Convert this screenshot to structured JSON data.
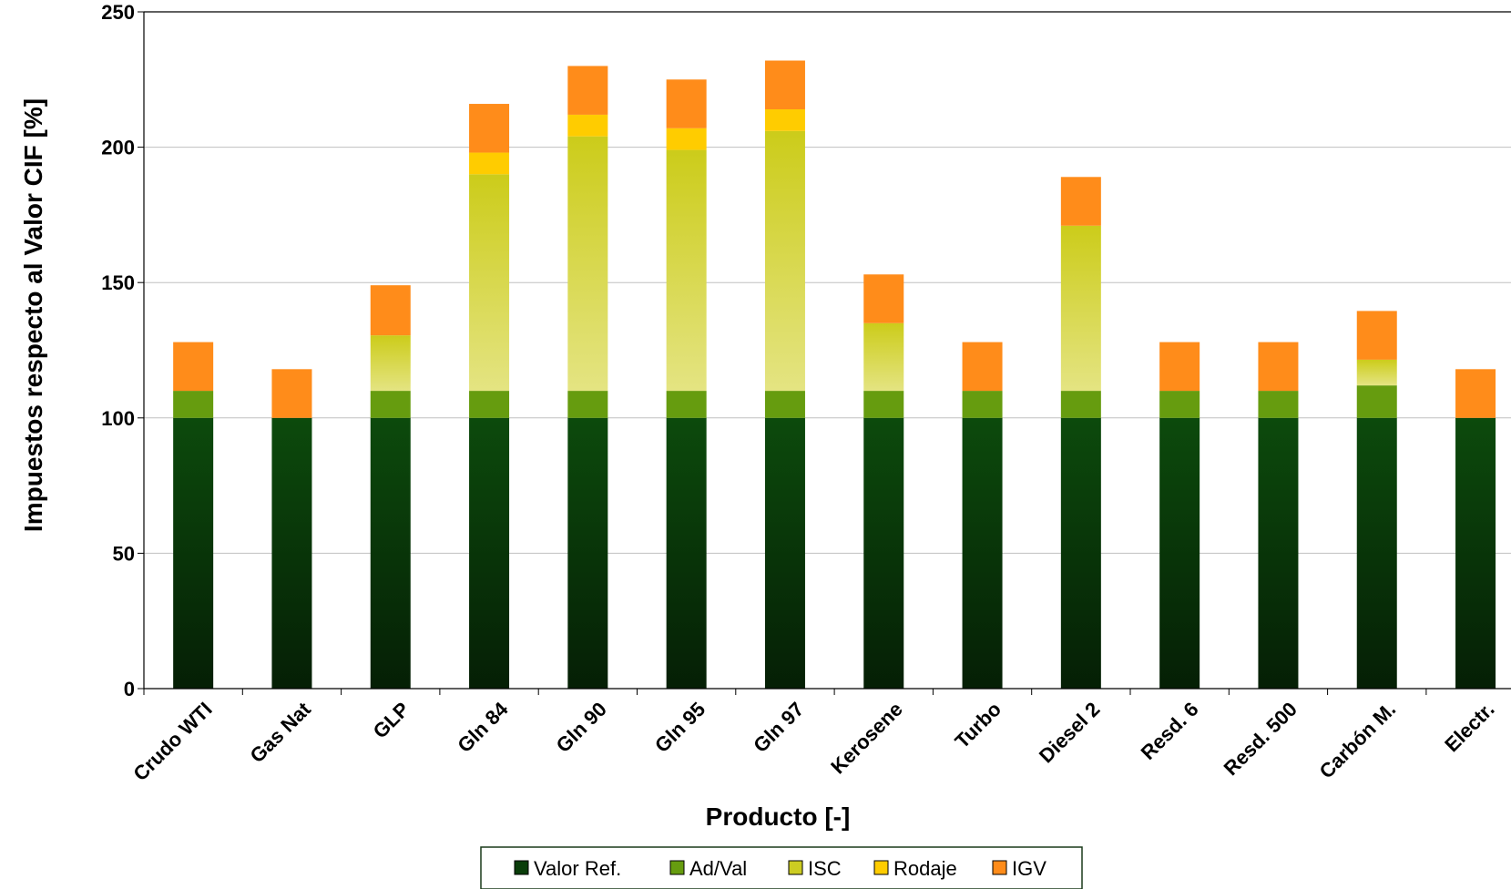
{
  "chart_data": {
    "type": "bar",
    "stacked": true,
    "xlabel": "Producto [-]",
    "ylabel": "Impuestos respecto al Valor CIF [%]",
    "ylim": [
      0,
      250
    ],
    "yticks": [
      0,
      50,
      100,
      150,
      200,
      250
    ],
    "grid": true,
    "legend_position": "bottom",
    "categories": [
      "Crudo WTI",
      "Gas Nat",
      "GLP",
      "Gln 84",
      "Gln 90",
      "Gln 95",
      "Gln 97",
      "Kerosene",
      "Turbo",
      "Diesel 2",
      "Resd. 6",
      "Resd. 500",
      "Carbón M.",
      "Electr."
    ],
    "series": [
      {
        "name": "Valor Ref.",
        "color": "#0a3d0a",
        "values": [
          100,
          100,
          100,
          100,
          100,
          100,
          100,
          100,
          100,
          100,
          100,
          100,
          100,
          100
        ]
      },
      {
        "name": "Ad/Val",
        "color": "#669c0f",
        "values": [
          10,
          0,
          10,
          10,
          10,
          10,
          10,
          10,
          10,
          10,
          10,
          10,
          12,
          0
        ]
      },
      {
        "name": "ISC",
        "color": "#cccc22",
        "values": [
          0,
          0,
          20.5,
          80,
          94,
          89,
          96,
          25,
          0,
          61,
          0,
          0,
          9.5,
          0
        ]
      },
      {
        "name": "Rodaje",
        "color": "#ffcc00",
        "values": [
          0,
          0,
          0,
          8,
          8,
          8,
          8,
          0,
          0,
          0,
          0,
          0,
          0,
          0
        ]
      },
      {
        "name": "IGV",
        "color": "#ff8c1a",
        "values": [
          18,
          18,
          18.5,
          18,
          18,
          18,
          18,
          18,
          18,
          18,
          18,
          18,
          18,
          18
        ]
      }
    ]
  }
}
